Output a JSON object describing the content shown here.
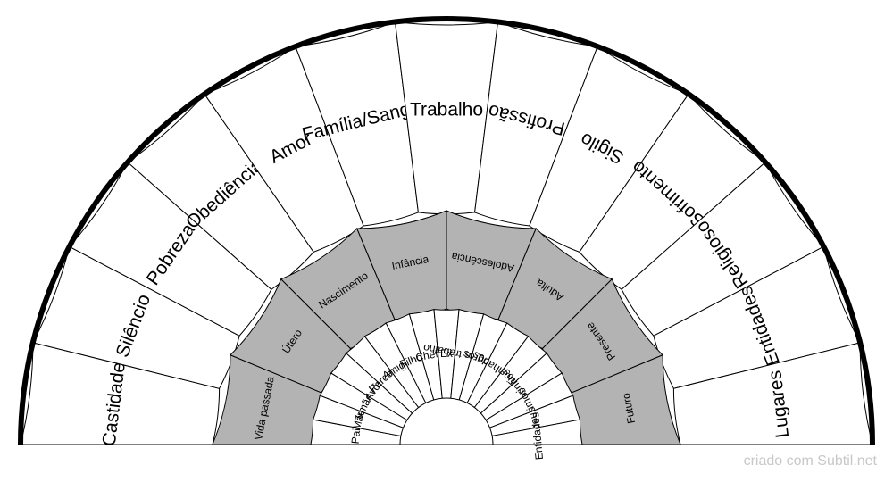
{
  "outer_ring": {
    "labels": [
      "Castidade",
      "Silêncio",
      "Pobreza",
      "Obediência",
      "Amor",
      "Família/Sangue",
      "Trabalho",
      "Profissão",
      "Sigilo",
      "Sofrimento",
      "Religioso",
      "Entidades",
      "Lugares"
    ]
  },
  "middle_ring": {
    "labels": [
      "Vida passada",
      "Útero",
      "Nascimento",
      "Infância",
      "Adolescência",
      "Adulta",
      "Presente",
      "Futuro"
    ]
  },
  "inner_ring": {
    "labels": [
      "Pai",
      "Mãe",
      "Irmãos",
      "Avós",
      "Parceiro",
      "Amigos",
      "Filhos",
      "Chefe",
      "Ex",
      "Colegas trabalho",
      "Sogros",
      "Cunhados",
      "Tios",
      "Sobrinhos",
      "Primos",
      "Deus",
      "Entidades"
    ]
  },
  "colors": {
    "outer_fill": "#ffffff",
    "middle_fill": "#b3b3b3",
    "inner_fill": "#ffffff",
    "stroke": "#000000",
    "rim": "#000000"
  },
  "footer": {
    "credit": "criado com Subtil.net"
  }
}
